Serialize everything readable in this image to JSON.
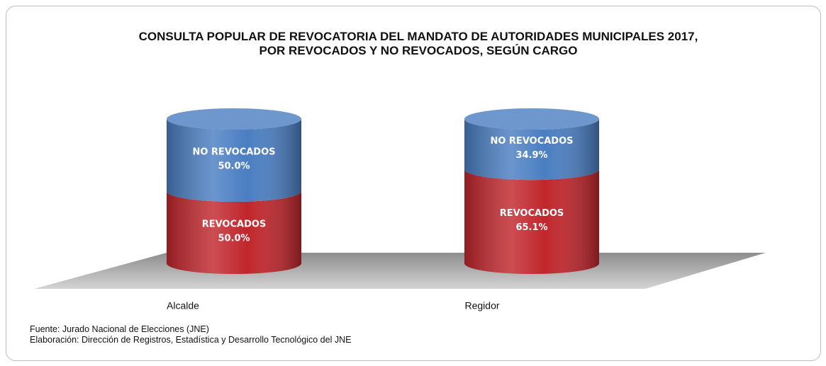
{
  "chart_data": {
    "type": "stacked-cylinder",
    "title": "CONSULTA POPULAR DE REVOCATORIA DEL MANDATO DE AUTORIDADES MUNICIPALES 2017, POR REVOCADOS Y NO REVOCADOS, SEGÚN CARGO",
    "categories": [
      "Alcalde",
      "Regidor"
    ],
    "series": [
      {
        "name": "REVOCADOS",
        "color": "#c0262c",
        "values": [
          50.0,
          65.1
        ],
        "value_labels": [
          "50.0%",
          "65.1%"
        ]
      },
      {
        "name": "NO REVOCADOS",
        "color": "#4a7ec2",
        "values": [
          50.0,
          34.9
        ],
        "value_labels": [
          "50.0%",
          "34.9%"
        ]
      }
    ],
    "ylim": [
      0,
      100
    ],
    "source": "Fuente: Jurado Nacional de Elecciones (JNE)",
    "credit": "Elaboración: Dirección de Registros, Estadística y Desarrollo Tecnológico del JNE"
  }
}
